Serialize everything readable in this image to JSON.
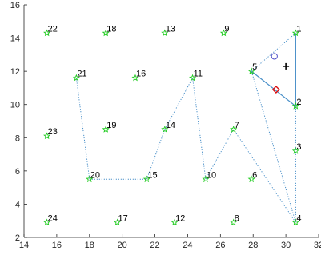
{
  "chart_data": {
    "type": "scatter",
    "title": "",
    "xlabel": "",
    "ylabel": "",
    "xlim": [
      14,
      32
    ],
    "ylim": [
      2,
      16
    ],
    "x_ticks": [
      14,
      16,
      18,
      20,
      22,
      24,
      26,
      28,
      30,
      32
    ],
    "y_ticks": [
      2,
      4,
      6,
      8,
      10,
      12,
      14,
      16
    ],
    "x_tick_labels": [
      "14",
      "16",
      "18",
      "20",
      "22",
      "24",
      "26",
      "28",
      "30",
      "32"
    ],
    "y_tick_labels": [
      "2",
      "4",
      "6",
      "8",
      "10",
      "12",
      "14",
      "16"
    ],
    "grid": false,
    "legend": "none",
    "nodes": [
      {
        "id": "1",
        "x": 30.6,
        "y": 14.3
      },
      {
        "id": "2",
        "x": 30.6,
        "y": 9.9
      },
      {
        "id": "3",
        "x": 30.6,
        "y": 7.2
      },
      {
        "id": "4",
        "x": 30.6,
        "y": 2.9
      },
      {
        "id": "5",
        "x": 27.9,
        "y": 12.0
      },
      {
        "id": "6",
        "x": 27.9,
        "y": 5.5
      },
      {
        "id": "7",
        "x": 26.8,
        "y": 8.5
      },
      {
        "id": "8",
        "x": 26.8,
        "y": 2.9
      },
      {
        "id": "9",
        "x": 26.2,
        "y": 14.3
      },
      {
        "id": "10",
        "x": 25.1,
        "y": 5.5
      },
      {
        "id": "11",
        "x": 24.3,
        "y": 11.6
      },
      {
        "id": "12",
        "x": 23.2,
        "y": 2.9
      },
      {
        "id": "13",
        "x": 22.6,
        "y": 14.3
      },
      {
        "id": "14",
        "x": 22.6,
        "y": 8.5
      },
      {
        "id": "15",
        "x": 21.5,
        "y": 5.5
      },
      {
        "id": "16",
        "x": 20.8,
        "y": 11.6
      },
      {
        "id": "17",
        "x": 19.7,
        "y": 2.9
      },
      {
        "id": "18",
        "x": 19.0,
        "y": 14.3
      },
      {
        "id": "19",
        "x": 19.0,
        "y": 8.5
      },
      {
        "id": "20",
        "x": 18.0,
        "y": 5.5
      },
      {
        "id": "21",
        "x": 17.2,
        "y": 11.6
      },
      {
        "id": "22",
        "x": 15.4,
        "y": 14.3
      },
      {
        "id": "23",
        "x": 15.4,
        "y": 8.1
      },
      {
        "id": "24",
        "x": 15.4,
        "y": 2.9
      }
    ],
    "dotted_route": [
      "21",
      "20",
      "15",
      "14",
      "11",
      "10",
      "7",
      "4",
      "5"
    ],
    "dotted_extra": [
      [
        "2",
        "4"
      ],
      [
        "5",
        "1"
      ]
    ],
    "solid_route": [
      "5",
      "2",
      "1"
    ],
    "markers": [
      {
        "kind": "circle",
        "x": 29.3,
        "y": 12.9
      },
      {
        "kind": "plus",
        "x": 30.0,
        "y": 12.3
      },
      {
        "kind": "diamond",
        "x": 29.4,
        "y": 10.9
      }
    ],
    "colors": {
      "node": "#22cc22",
      "route": "#4a90c9",
      "axis": "#262626",
      "label": "#000000",
      "circle_marker": "#5050c8",
      "plus_marker": "#000000",
      "diamond_marker": "#dd1111"
    }
  }
}
